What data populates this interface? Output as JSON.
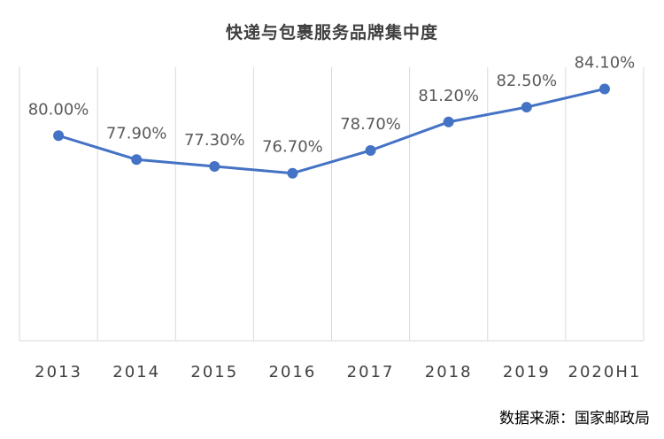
{
  "title": "快递与包裹服务品牌集中度",
  "source": "数据来源：国家邮政局",
  "chart_data": {
    "type": "line",
    "title": "快递与包裹服务品牌集中度",
    "categories": [
      "2013",
      "2014",
      "2015",
      "2016",
      "2017",
      "2018",
      "2019",
      "2020H1"
    ],
    "series": [
      {
        "values": [
          80.0,
          77.9,
          77.3,
          76.7,
          78.7,
          81.2,
          82.5,
          84.1
        ],
        "labels": [
          "80.00%",
          "77.90%",
          "77.30%",
          "76.70%",
          "78.70%",
          "81.20%",
          "82.50%",
          "84.10%"
        ],
        "color": "#4472C4"
      }
    ],
    "xlabel": "",
    "ylabel": "",
    "ylim": [
      62,
      86
    ],
    "grid": "vertical",
    "legend": "none"
  }
}
